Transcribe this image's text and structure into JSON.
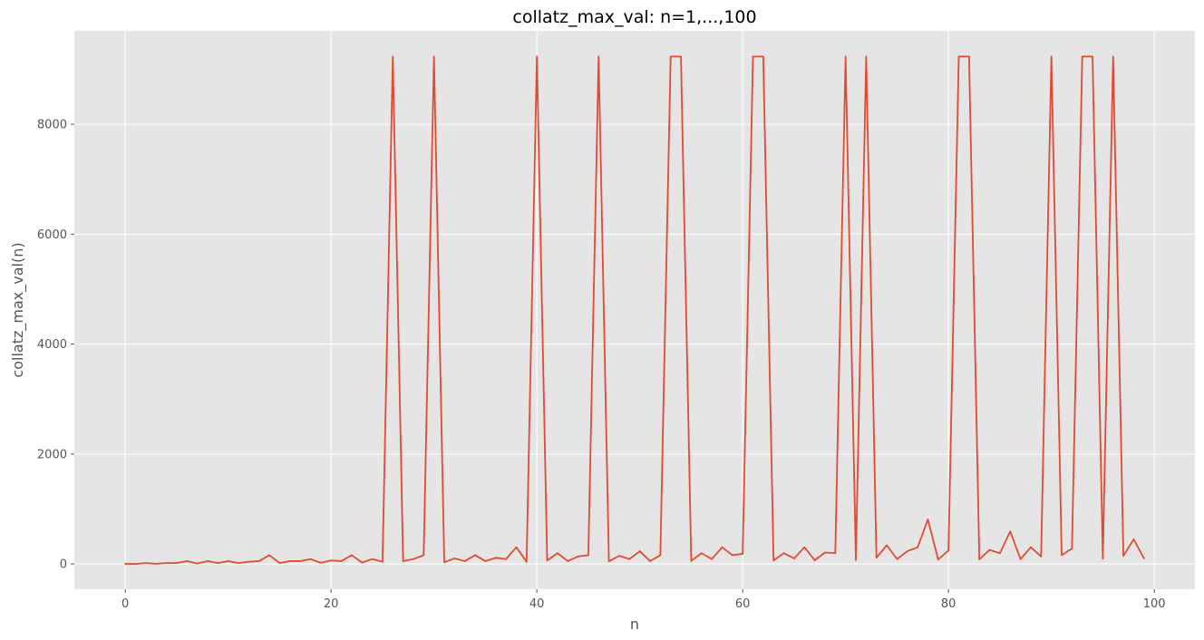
{
  "chart_data": {
    "type": "line",
    "title": "collatz_max_val: n=1,...,100",
    "xlabel": "n",
    "ylabel": "collatz_max_val(n)",
    "xlim": [
      -4.95,
      103.95
    ],
    "ylim": [
      -460,
      9700
    ],
    "xticks": [
      0,
      20,
      40,
      60,
      80,
      100
    ],
    "yticks": [
      0,
      2000,
      4000,
      6000,
      8000
    ],
    "grid": true,
    "style": "ggplot",
    "colors": {
      "background": "#E5E5E5",
      "grid": "#FFFFFF",
      "line": "#E24A33",
      "tick": "#555555"
    },
    "series": [
      {
        "x": [
          0,
          1,
          2,
          3,
          4,
          5,
          6,
          7,
          8,
          9,
          10,
          11,
          12,
          13,
          14,
          15,
          16,
          17,
          18,
          19,
          20,
          21,
          22,
          23,
          24,
          25,
          26,
          27,
          28,
          29,
          30,
          31,
          32,
          33,
          34,
          35,
          36,
          37,
          38,
          39,
          40,
          41,
          42,
          43,
          44,
          45,
          46,
          47,
          48,
          49,
          50,
          51,
          52,
          53,
          54,
          55,
          56,
          57,
          58,
          59,
          60,
          61,
          62,
          63,
          64,
          65,
          66,
          67,
          68,
          69,
          70,
          71,
          72,
          73,
          74,
          75,
          76,
          77,
          78,
          79,
          80,
          81,
          82,
          83,
          84,
          85,
          86,
          87,
          88,
          89,
          90,
          91,
          92,
          93,
          94,
          95,
          96,
          97,
          98,
          99
        ],
        "values": [
          1,
          2,
          16,
          4,
          16,
          16,
          52,
          8,
          52,
          16,
          52,
          16,
          40,
          52,
          160,
          16,
          52,
          52,
          88,
          20,
          64,
          52,
          160,
          24,
          88,
          40,
          9232,
          52,
          88,
          160,
          9232,
          32,
          100,
          52,
          160,
          52,
          112,
          88,
          304,
          40,
          9232,
          64,
          196,
          52,
          136,
          160,
          9232,
          48,
          148,
          88,
          232,
          52,
          160,
          9232,
          9232,
          56,
          196,
          88,
          304,
          160,
          184,
          9232,
          9232,
          64,
          196,
          100,
          304,
          68,
          208,
          196,
          9232,
          72,
          9232,
          112,
          340,
          88,
          232,
          304,
          808,
          80,
          244,
          9232,
          9232,
          84,
          256,
          196,
          592,
          88,
          304,
          136,
          9232,
          160,
          280,
          9232,
          9232,
          96,
          9232,
          148,
          448,
          100
        ]
      }
    ]
  }
}
